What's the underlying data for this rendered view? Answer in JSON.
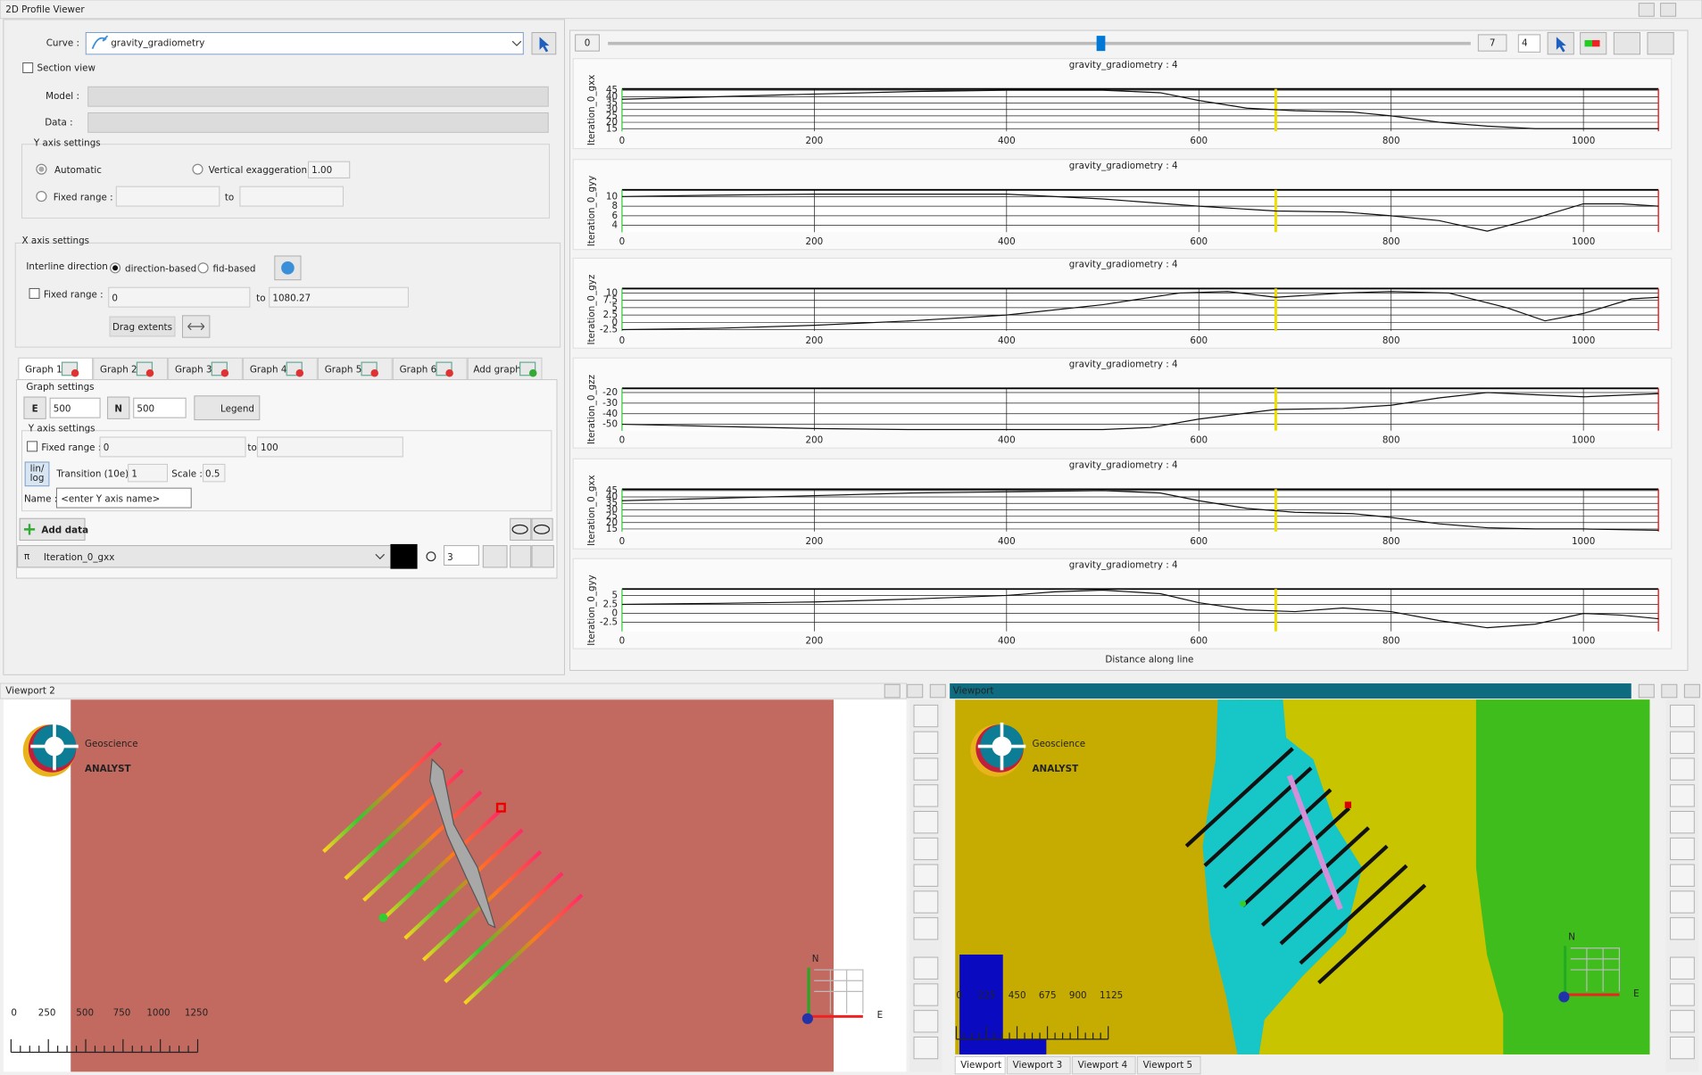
{
  "window_title": "2D Profile Viewer",
  "left_panel": {
    "curve_label": "Curve :",
    "curve_value": "gravity_gradiometry",
    "section_view": "Section view",
    "model_label": "Model :",
    "data_label": "Data :",
    "y_axis_settings": "Y axis settings",
    "automatic": "Automatic",
    "vertical_exaggeration": "Vertical exaggeration :",
    "vertical_exaggeration_value": "1.00",
    "fixed_range": "Fixed range :",
    "to": "to",
    "x_axis_settings": "X axis settings",
    "interline_direction": "Interline direction :",
    "direction_based": "direction-based",
    "fid_based": "fid-based",
    "x_fixed_range": "Fixed range :",
    "x_from": "0",
    "x_to_label": "to",
    "x_to": "1080.27",
    "drag_extents": "Drag extents",
    "tabs": [
      "Graph 1",
      "Graph 2",
      "Graph 3",
      "Graph 4",
      "Graph 5",
      "Graph 6",
      "Add graph"
    ],
    "graph_settings": "Graph settings",
    "e_button": "E",
    "e_value": "500",
    "n_button": "N",
    "n_value": "500",
    "legend": "Legend",
    "graph_y_axis_settings": "Y axis settings",
    "graph_fixed_range": "Fixed range :",
    "graph_from": "0",
    "graph_to_label": "to",
    "graph_to": "100",
    "lin": "lin/",
    "log": "log",
    "transition": "Transition (10e) :",
    "transition_value": "1",
    "scale": "Scale :",
    "scale_value": "0.5",
    "name_label": "Name :",
    "name_placeholder": "<enter Y axis name>",
    "add_data": "Add data",
    "data_curve": "Iteration_0_gxx",
    "line_width": "3"
  },
  "slider": {
    "min": 0,
    "max": 7,
    "value": 4
  },
  "profiles": {
    "x_label": "Distance along line",
    "xlim": [
      0,
      1078
    ],
    "xticks": [
      0,
      200,
      400,
      600,
      800,
      1000
    ],
    "cursor_x": 680,
    "plots": [
      {
        "title": "gravity_gradiometry : 4",
        "y_label": "Iteration_0_gxx",
        "ylim": [
          13,
          46
        ],
        "yticks": [
          15,
          20,
          25,
          30,
          35,
          40,
          45
        ],
        "x": [
          0,
          100,
          200,
          300,
          400,
          500,
          560,
          600,
          650,
          700,
          760,
          800,
          850,
          900,
          950,
          1000,
          1078
        ],
        "values": [
          38,
          40,
          42,
          44,
          45,
          45,
          43,
          37,
          31,
          29,
          28,
          25,
          20,
          17,
          15,
          15,
          15
        ]
      },
      {
        "title": "gravity_gradiometry : 4",
        "y_label": "Iteration_0_gyy",
        "ylim": [
          2.6,
          11.4
        ],
        "yticks": [
          4,
          6,
          8,
          10
        ],
        "x": [
          0,
          100,
          200,
          300,
          400,
          500,
          600,
          680,
          750,
          800,
          850,
          900,
          950,
          1000,
          1040,
          1078
        ],
        "values": [
          10,
          10.3,
          10.5,
          10.5,
          10.5,
          9.5,
          8,
          7,
          6.8,
          6,
          5,
          2.8,
          5.5,
          8.5,
          8.5,
          8
        ]
      },
      {
        "title": "gravity_gradiometry : 4",
        "y_label": "Iteration_0_gyz",
        "ylim": [
          -2.9,
          11.5
        ],
        "yticks": [
          -2.5,
          0,
          2.5,
          5,
          7.5,
          10
        ],
        "x": [
          0,
          100,
          200,
          300,
          400,
          500,
          580,
          630,
          680,
          750,
          800,
          860,
          920,
          960,
          1000,
          1050,
          1078
        ],
        "values": [
          -2.5,
          -2,
          -1,
          0.5,
          2.5,
          6,
          10,
          10.5,
          8.5,
          10,
          10.5,
          10,
          5,
          0.5,
          3,
          8,
          8.5
        ]
      },
      {
        "title": "gravity_gradiometry : 4",
        "y_label": "Iteration_0_gzz",
        "ylim": [
          -56,
          -16
        ],
        "yticks": [
          -50,
          -40,
          -30,
          -20
        ],
        "x": [
          0,
          100,
          200,
          300,
          400,
          500,
          550,
          600,
          680,
          750,
          800,
          850,
          900,
          950,
          1000,
          1078
        ],
        "values": [
          -50,
          -52,
          -54,
          -55,
          -55,
          -55,
          -53,
          -45,
          -36,
          -35,
          -32,
          -25,
          -20,
          -22,
          -24,
          -21
        ]
      },
      {
        "title": "gravity_gradiometry : 4",
        "y_label": "Iteration_0_gxx",
        "ylim": [
          13,
          46
        ],
        "yticks": [
          15,
          20,
          25,
          30,
          35,
          40,
          45
        ],
        "x": [
          0,
          100,
          200,
          300,
          400,
          500,
          560,
          600,
          650,
          700,
          760,
          800,
          850,
          900,
          950,
          1000,
          1078
        ],
        "values": [
          37,
          39,
          41,
          43,
          44,
          45,
          43,
          37,
          31,
          28,
          27,
          24,
          19,
          16,
          15,
          15,
          14
        ]
      },
      {
        "title": "gravity_gradiometry : 4",
        "y_label": "Iteration_0_gyy",
        "ylim": [
          -5,
          6.8
        ],
        "yticks": [
          -2.5,
          0,
          2.5,
          5
        ],
        "x": [
          0,
          100,
          200,
          300,
          400,
          450,
          500,
          560,
          600,
          650,
          700,
          750,
          800,
          850,
          900,
          950,
          1000,
          1040,
          1078
        ],
        "values": [
          2.5,
          2.8,
          3.2,
          4,
          5,
          6,
          6.5,
          5.5,
          3,
          1,
          0.5,
          1.5,
          0.5,
          -2,
          -4,
          -3,
          0,
          -0.5,
          -1.5
        ]
      }
    ]
  },
  "viewport_left": {
    "title": "Viewport 2",
    "logo_top": "Geoscience",
    "logo_bottom": "ANALYST",
    "scale_labels": [
      0,
      250,
      500,
      750,
      1000,
      1250
    ],
    "axis_north": "N",
    "axis_east": "E"
  },
  "viewport_right": {
    "title": "Viewport",
    "logo_top": "Geoscience",
    "logo_bottom": "ANALYST",
    "scale_labels": [
      0,
      225,
      450,
      675,
      900,
      1125
    ],
    "axis_north": "N",
    "axis_east": "E",
    "tabs": [
      "Viewport",
      "Viewport 3",
      "Viewport 4",
      "Viewport 5"
    ]
  }
}
